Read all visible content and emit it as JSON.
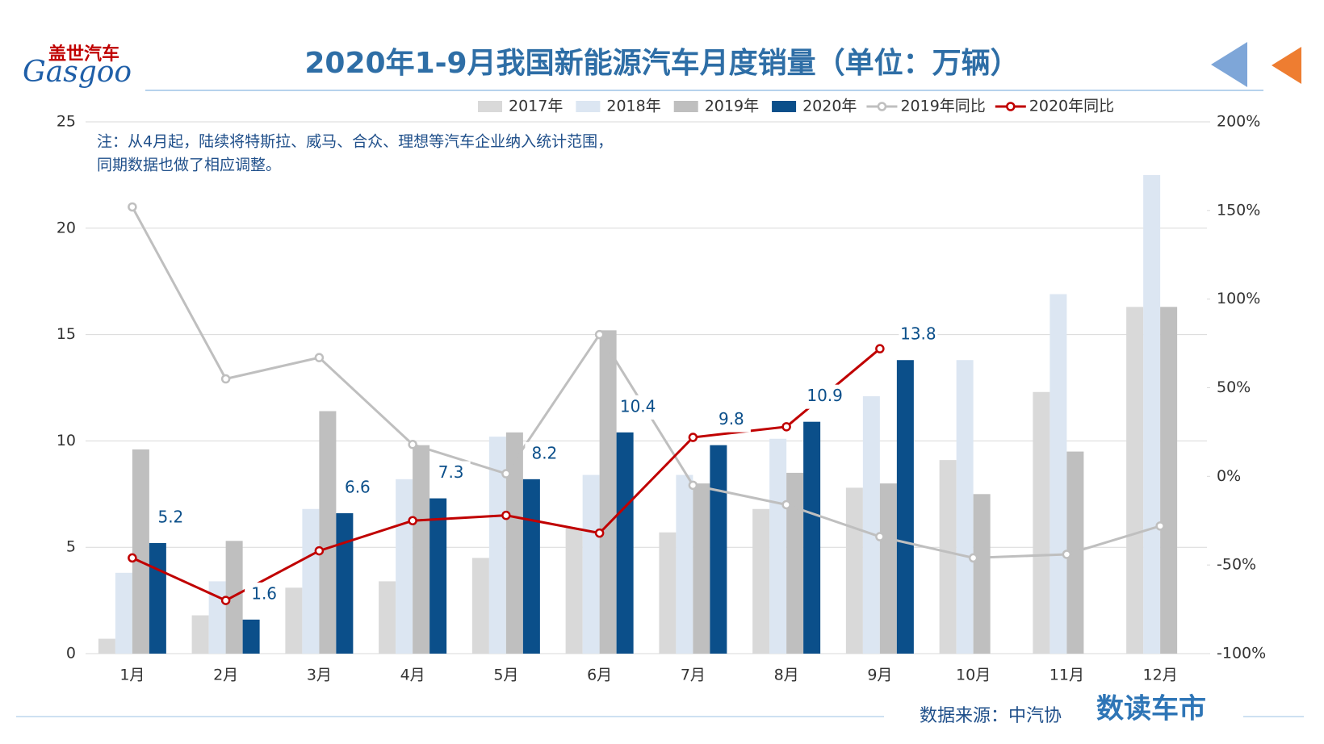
{
  "logo": {
    "cn": "盖世汽车",
    "en": "Gasgoo"
  },
  "brand": "数读车市",
  "source": "数据来源：中汽协",
  "chart_data": {
    "type": "bar",
    "title": "2020年1-9月我国新能源汽车月度销量（单位：万辆）",
    "annotation": [
      "注：从4月起，陆续将特斯拉、威马、合众、理想等汽车企业纳入统计范围，",
      "同期数据也做了相应调整。"
    ],
    "categories": [
      "1月",
      "2月",
      "3月",
      "4月",
      "5月",
      "6月",
      "7月",
      "8月",
      "9月",
      "10月",
      "11月",
      "12月"
    ],
    "series": [
      {
        "name": "2017年",
        "type": "bar",
        "color": "#d9d9d9",
        "values": [
          0.7,
          1.8,
          3.1,
          3.4,
          4.5,
          5.9,
          5.7,
          6.8,
          7.8,
          9.1,
          12.3,
          16.3
        ]
      },
      {
        "name": "2018年",
        "type": "bar",
        "color": "#dce6f2",
        "values": [
          3.8,
          3.4,
          6.8,
          8.2,
          10.2,
          8.4,
          8.4,
          10.1,
          12.1,
          13.8,
          16.9,
          22.5
        ]
      },
      {
        "name": "2019年",
        "type": "bar",
        "color": "#bfbfbf",
        "values": [
          9.6,
          5.3,
          11.4,
          9.8,
          10.4,
          15.2,
          8.0,
          8.5,
          8.0,
          7.5,
          9.5,
          16.3
        ]
      },
      {
        "name": "2020年",
        "type": "bar",
        "color": "#0b4f8a",
        "values": [
          5.2,
          1.6,
          6.6,
          7.3,
          8.2,
          10.4,
          9.8,
          10.9,
          13.8,
          null,
          null,
          null
        ],
        "data_labels": true
      },
      {
        "name": "2019年同比",
        "type": "line",
        "axis": "y2",
        "color": "#bfbfbf",
        "values": [
          152,
          55,
          67,
          18,
          1.5,
          80,
          -5,
          -16,
          -34,
          -46,
          -44,
          -28
        ]
      },
      {
        "name": "2020年同比",
        "type": "line",
        "axis": "y2",
        "color": "#c00000",
        "values": [
          -46,
          -70,
          -42,
          -25,
          -22,
          -32,
          22,
          28,
          72,
          null,
          null,
          null
        ]
      }
    ],
    "ylim": [
      0,
      25
    ],
    "yticks": [
      0,
      5,
      10,
      15,
      20,
      25
    ],
    "y2lim": [
      -100,
      200
    ],
    "y2ticks": [
      {
        "value": -100,
        "label": "-100%"
      },
      {
        "value": -50,
        "label": "-50%"
      },
      {
        "value": 0,
        "label": "0%"
      },
      {
        "value": 50,
        "label": "50%"
      },
      {
        "value": 100,
        "label": "100%"
      },
      {
        "value": 150,
        "label": "150%"
      },
      {
        "value": 200,
        "label": "200%"
      }
    ],
    "grid": true
  }
}
